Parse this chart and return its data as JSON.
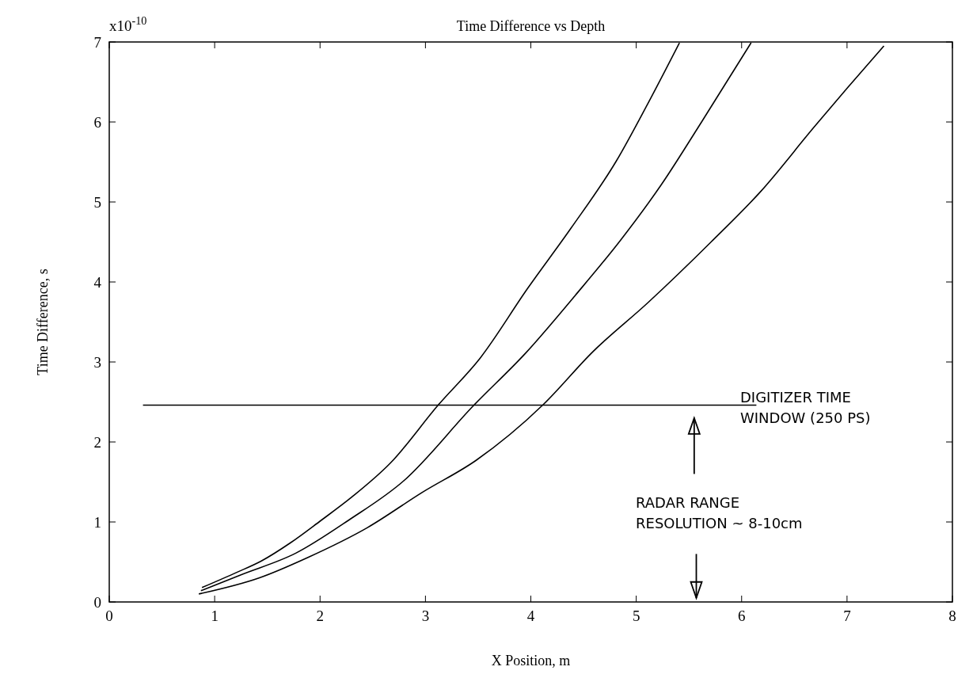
{
  "chart_data": {
    "type": "line",
    "title": "Time Difference vs Depth",
    "xlabel": "X Position, m",
    "ylabel": "Time Difference, s",
    "xlim": [
      0,
      8
    ],
    "xticks": [
      0,
      1,
      2,
      3,
      4,
      5,
      6,
      7,
      8
    ],
    "ylim": [
      0,
      7
    ],
    "yticks": [
      0,
      1,
      2,
      3,
      4,
      5,
      6,
      7
    ],
    "grid": false,
    "marker": "none",
    "line_style": "solid",
    "series": [
      {
        "color": "#000000",
        "x": [
          0.88,
          1.21,
          1.44,
          1.72,
          2.0,
          2.3,
          2.67,
          3.12,
          3.52,
          3.97,
          4.38,
          4.81,
          5.11,
          5.41
        ],
        "values": [
          0.18,
          0.37,
          0.51,
          0.74,
          1.01,
          1.31,
          1.74,
          2.46,
          3.05,
          3.92,
          4.67,
          5.51,
          6.23,
          6.99
        ]
      },
      {
        "color": "#000000",
        "x": [
          0.87,
          1.25,
          1.77,
          2.28,
          2.79,
          3.46,
          3.95,
          4.42,
          4.85,
          5.24,
          5.62,
          6.09
        ],
        "values": [
          0.14,
          0.34,
          0.61,
          1.03,
          1.51,
          2.46,
          3.11,
          3.83,
          4.52,
          5.22,
          6.0,
          6.99
        ]
      },
      {
        "color": "#000000",
        "x": [
          0.85,
          1.42,
          1.89,
          2.45,
          2.97,
          3.48,
          4.12,
          4.59,
          5.11,
          5.71,
          6.18,
          6.69,
          7.0,
          7.35
        ],
        "values": [
          0.1,
          0.3,
          0.56,
          0.93,
          1.37,
          1.77,
          2.47,
          3.13,
          3.74,
          4.5,
          5.13,
          5.94,
          6.42,
          6.95
        ]
      },
      {
        "color": "#000000",
        "x": [
          0.32,
          6.14
        ],
        "values": [
          2.46,
          2.46
        ]
      }
    ],
    "annotations": [
      "x10$^{-10}$",
      "DIGITIZER TIME WINDOW (250 PS)",
      "RADAR RANGE RESOLUTION ~ 8-10cm"
    ]
  }
}
